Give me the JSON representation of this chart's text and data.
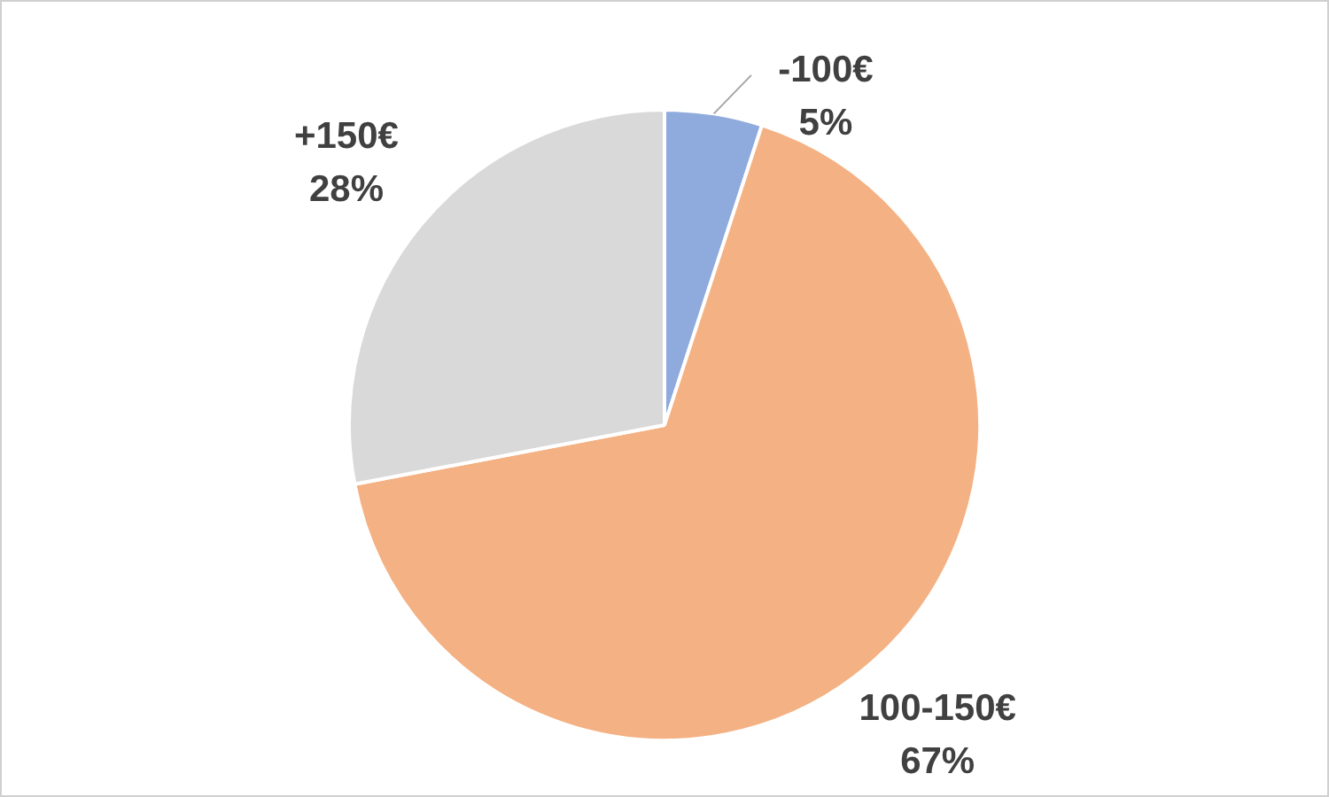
{
  "chart_data": {
    "type": "pie",
    "categories": [
      "-100€",
      "100-150€",
      "+150€"
    ],
    "values": [
      5,
      67,
      28
    ],
    "value_labels": [
      "5%",
      "67%",
      "28%"
    ],
    "colors": [
      "#8faadc",
      "#f4b183",
      "#d9d9d9"
    ],
    "legend": false
  }
}
